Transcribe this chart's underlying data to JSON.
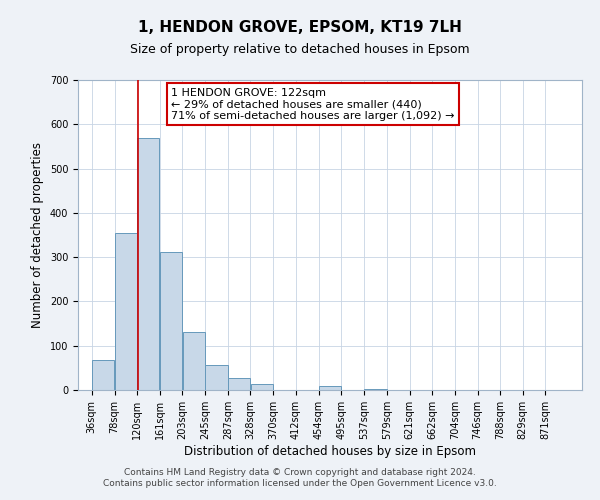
{
  "title": "1, HENDON GROVE, EPSOM, KT19 7LH",
  "subtitle": "Size of property relative to detached houses in Epsom",
  "xlabel": "Distribution of detached houses by size in Epsom",
  "ylabel": "Number of detached properties",
  "bar_color": "#c8d8e8",
  "bar_edge_color": "#6699bb",
  "annotation_line1": "1 HENDON GROVE: 122sqm",
  "annotation_line2": "← 29% of detached houses are smaller (440)",
  "annotation_line3": "71% of semi-detached houses are larger (1,092) →",
  "annotation_box_color": "#ffffff",
  "annotation_box_edge_color": "#cc0000",
  "marker_line_color": "#cc0000",
  "marker_value": 122,
  "categories": [
    "36sqm",
    "78sqm",
    "120sqm",
    "161sqm",
    "203sqm",
    "245sqm",
    "287sqm",
    "328sqm",
    "370sqm",
    "412sqm",
    "454sqm",
    "495sqm",
    "537sqm",
    "579sqm",
    "621sqm",
    "662sqm",
    "704sqm",
    "746sqm",
    "788sqm",
    "829sqm",
    "871sqm"
  ],
  "bin_edges": [
    36,
    78,
    120,
    161,
    203,
    245,
    287,
    328,
    370,
    412,
    454,
    495,
    537,
    579,
    621,
    662,
    704,
    746,
    788,
    829,
    871,
    913
  ],
  "counts": [
    68,
    355,
    570,
    312,
    132,
    57,
    27,
    14,
    0,
    0,
    10,
    0,
    3,
    0,
    0,
    0,
    0,
    0,
    0,
    0,
    0
  ],
  "ylim": [
    0,
    700
  ],
  "yticks": [
    0,
    100,
    200,
    300,
    400,
    500,
    600,
    700
  ],
  "footer_line1": "Contains HM Land Registry data © Crown copyright and database right 2024.",
  "footer_line2": "Contains public sector information licensed under the Open Government Licence v3.0.",
  "background_color": "#eef2f7",
  "plot_background_color": "#ffffff",
  "title_fontsize": 11,
  "subtitle_fontsize": 9,
  "axis_label_fontsize": 8.5,
  "tick_fontsize": 7,
  "footer_fontsize": 6.5,
  "annotation_fontsize": 8
}
